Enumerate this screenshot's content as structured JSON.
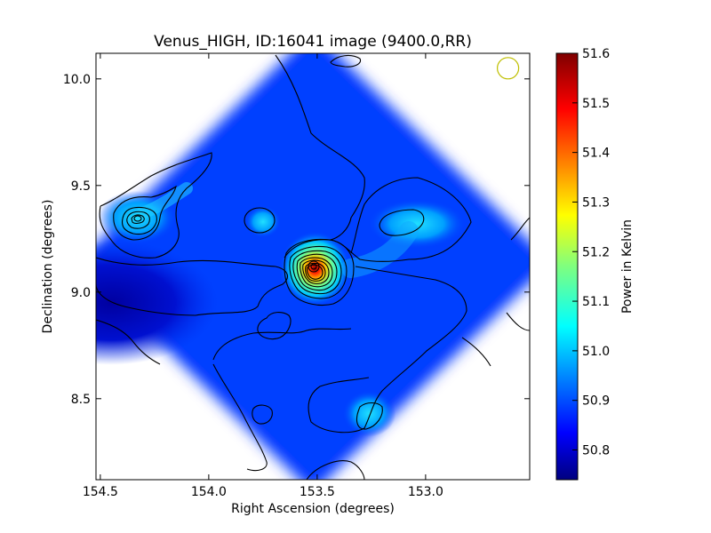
{
  "chart_data": {
    "type": "heatmap",
    "title": "Venus_HIGH, ID:16041 image (9400.0,RR)",
    "xlabel": "Right Ascension (degrees)",
    "ylabel": "Declination (degrees)",
    "colorbar_label": "Power in Kelvin",
    "xlim": [
      154.52,
      152.52
    ],
    "ylim": [
      8.12,
      10.12
    ],
    "xticks": [
      154.5,
      154.0,
      153.5,
      153.0
    ],
    "xtick_labels": [
      "154.5",
      "154.0",
      "153.5",
      "153.0"
    ],
    "yticks": [
      8.5,
      9.0,
      9.5,
      10.0
    ],
    "ytick_labels": [
      "8.5",
      "9.0",
      "9.5",
      "10.0"
    ],
    "colorbar_range": [
      50.74,
      51.6
    ],
    "colorbar_ticks": [
      50.8,
      50.9,
      51.0,
      51.1,
      51.2,
      51.3,
      51.4,
      51.5,
      51.6
    ],
    "colorbar_tick_labels": [
      "50.8",
      "50.9",
      "51.0",
      "51.1",
      "51.2",
      "51.3",
      "51.4",
      "51.5",
      "51.6"
    ],
    "colormap": "jet",
    "background_level": 50.9,
    "grid": false,
    "features": [
      {
        "ra": 153.51,
        "dec": 9.11,
        "peak": 51.6
      },
      {
        "ra": 154.33,
        "dec": 9.35,
        "peak": 51.1
      },
      {
        "ra": 153.04,
        "dec": 9.32,
        "peak": 51.0
      },
      {
        "ra": 153.26,
        "dec": 8.43,
        "peak": 50.98
      },
      {
        "ra": 153.75,
        "dec": 9.33,
        "peak": 50.95
      },
      {
        "ra": 154.45,
        "dec": 8.95,
        "peak": 50.75
      }
    ],
    "beam_marker": {
      "ra": 152.62,
      "dec": 10.05,
      "color": "#bfbf00"
    }
  }
}
